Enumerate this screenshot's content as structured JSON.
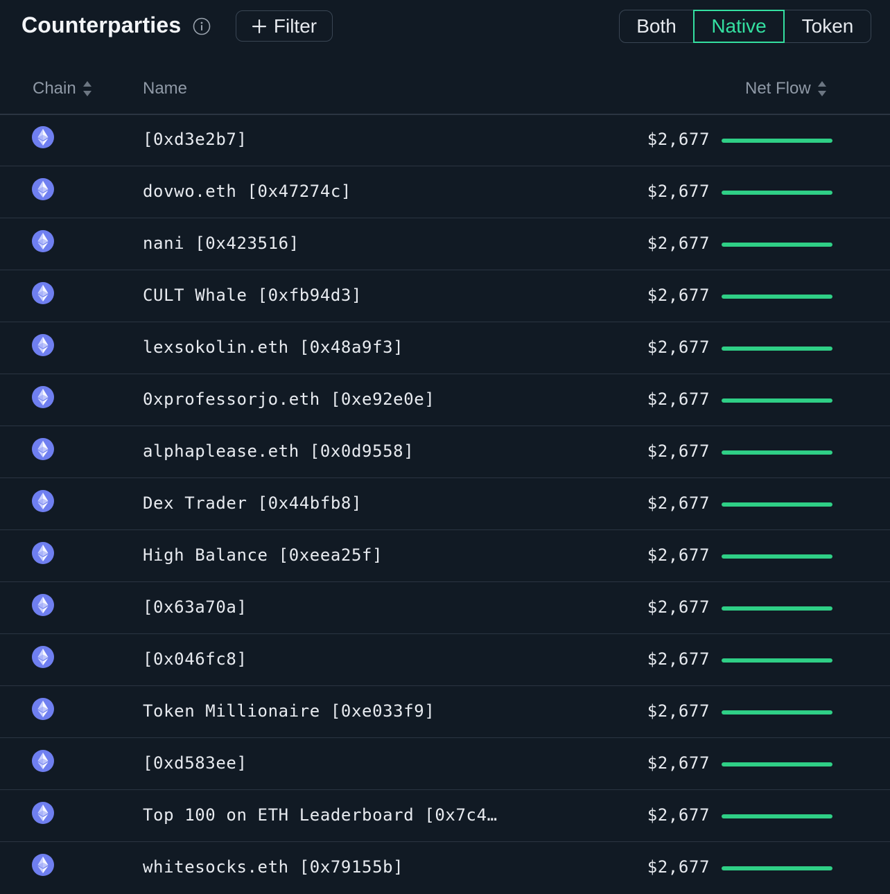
{
  "header": {
    "title": "Counterparties",
    "filter_label": "Filter",
    "segments": [
      {
        "label": "Both",
        "selected": false
      },
      {
        "label": "Native",
        "selected": true
      },
      {
        "label": "Token",
        "selected": false
      }
    ]
  },
  "table": {
    "columns": {
      "chain": "Chain",
      "name": "Name",
      "net_flow": "Net Flow"
    },
    "rows": [
      {
        "chain_icon": "ethereum-icon",
        "name": "[0xd3e2b7]",
        "net_flow": "$2,677",
        "flow_fraction": 1.0
      },
      {
        "chain_icon": "ethereum-icon",
        "name": "dovwo.eth [0x47274c]",
        "net_flow": "$2,677",
        "flow_fraction": 1.0
      },
      {
        "chain_icon": "ethereum-icon",
        "name": "nani [0x423516]",
        "net_flow": "$2,677",
        "flow_fraction": 1.0
      },
      {
        "chain_icon": "ethereum-icon",
        "name": "CULT Whale [0xfb94d3]",
        "net_flow": "$2,677",
        "flow_fraction": 1.0
      },
      {
        "chain_icon": "ethereum-icon",
        "name": "lexsokolin.eth [0x48a9f3]",
        "net_flow": "$2,677",
        "flow_fraction": 1.0
      },
      {
        "chain_icon": "ethereum-icon",
        "name": "0xprofessorjo.eth [0xe92e0e]",
        "net_flow": "$2,677",
        "flow_fraction": 1.0
      },
      {
        "chain_icon": "ethereum-icon",
        "name": "alphaplease.eth [0x0d9558]",
        "net_flow": "$2,677",
        "flow_fraction": 1.0
      },
      {
        "chain_icon": "ethereum-icon",
        "name": "Dex Trader [0x44bfb8]",
        "net_flow": "$2,677",
        "flow_fraction": 1.0
      },
      {
        "chain_icon": "ethereum-icon",
        "name": "High Balance [0xeea25f]",
        "net_flow": "$2,677",
        "flow_fraction": 1.0
      },
      {
        "chain_icon": "ethereum-icon",
        "name": "[0x63a70a]",
        "net_flow": "$2,677",
        "flow_fraction": 1.0
      },
      {
        "chain_icon": "ethereum-icon",
        "name": "[0x046fc8]",
        "net_flow": "$2,677",
        "flow_fraction": 1.0
      },
      {
        "chain_icon": "ethereum-icon",
        "name": "Token Millionaire [0xe033f9]",
        "net_flow": "$2,677",
        "flow_fraction": 1.0
      },
      {
        "chain_icon": "ethereum-icon",
        "name": "[0xd583ee]",
        "net_flow": "$2,677",
        "flow_fraction": 1.0
      },
      {
        "chain_icon": "ethereum-icon",
        "name": "Top 100 on ETH Leaderboard [0x7c4…",
        "net_flow": "$2,677",
        "flow_fraction": 1.0
      },
      {
        "chain_icon": "ethereum-icon",
        "name": "whitesocks.eth [0x79155b]",
        "net_flow": "$2,677",
        "flow_fraction": 1.0
      }
    ]
  },
  "colors": {
    "background": "#111a24",
    "accent": "#34e0a1",
    "flow_bar": "#2fcf86",
    "ethereum": "#6f7ff0"
  }
}
